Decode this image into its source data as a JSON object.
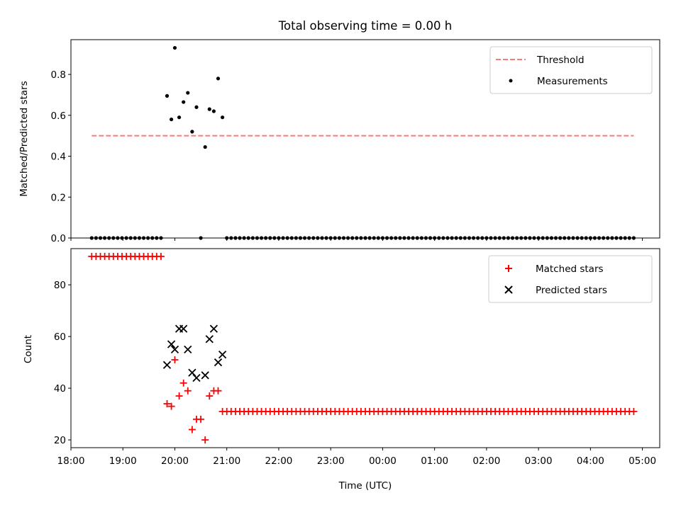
{
  "chart_data": [
    {
      "type": "scatter",
      "title": "Total observing time = 0.00 h",
      "xlabel": "",
      "ylabel": "Matched/Predicted stars",
      "ylim": [
        0,
        0.97
      ],
      "yticks": [
        "0.0",
        "0.2",
        "0.4",
        "0.6",
        "0.8"
      ],
      "xlim": [
        "18:00",
        "05:20"
      ],
      "xticks": [
        "18:00",
        "19:00",
        "20:00",
        "21:00",
        "22:00",
        "23:00",
        "00:00",
        "01:00",
        "02:00",
        "03:00",
        "04:00",
        "05:00"
      ],
      "legend_position": "top-right",
      "threshold": {
        "name": "Threshold",
        "value": 0.5,
        "x_start": "18:24",
        "x_end": "04:50",
        "color": "#ff7777"
      },
      "series": [
        {
          "name": "Measurements",
          "color": "#000000",
          "marker": "dot",
          "points": [
            [
              "19:51",
              0.695
            ],
            [
              "19:56",
              0.58
            ],
            [
              "20:00",
              0.93
            ],
            [
              "20:05",
              0.59
            ],
            [
              "20:10",
              0.665
            ],
            [
              "20:15",
              0.71
            ],
            [
              "20:20",
              0.52
            ],
            [
              "20:25",
              0.64
            ],
            [
              "20:30",
              0.0
            ],
            [
              "20:35",
              0.445
            ],
            [
              "20:40",
              0.63
            ],
            [
              "20:45",
              0.62
            ],
            [
              "20:50",
              0.78
            ],
            [
              "20:55",
              0.59
            ]
          ],
          "zero_runs": [
            {
              "from": "18:24",
              "to": "19:46",
              "step_minutes": 5
            },
            {
              "from": "21:00",
              "to": "04:50",
              "step_minutes": 5
            }
          ]
        }
      ]
    },
    {
      "type": "scatter",
      "title": "",
      "xlabel": "Time (UTC)",
      "ylabel": "Count",
      "ylim": [
        17,
        94
      ],
      "yticks": [
        "20",
        "40",
        "60",
        "80"
      ],
      "xlim": [
        "18:00",
        "05:20"
      ],
      "xticks": [
        "18:00",
        "19:00",
        "20:00",
        "21:00",
        "22:00",
        "23:00",
        "00:00",
        "01:00",
        "02:00",
        "03:00",
        "04:00",
        "05:00"
      ],
      "legend_position": "top-right",
      "series": [
        {
          "name": "Matched stars",
          "color": "#ff0000",
          "marker": "plus",
          "points": [
            [
              "19:51",
              34
            ],
            [
              "19:56",
              33
            ],
            [
              "20:00",
              51
            ],
            [
              "20:05",
              37
            ],
            [
              "20:10",
              42
            ],
            [
              "20:15",
              39
            ],
            [
              "20:20",
              24
            ],
            [
              "20:25",
              28
            ],
            [
              "20:30",
              28
            ],
            [
              "20:35",
              20
            ],
            [
              "20:40",
              37
            ],
            [
              "20:45",
              39
            ],
            [
              "20:50",
              39
            ]
          ],
          "runs": [
            {
              "from": "18:24",
              "to": "19:46",
              "step_minutes": 5,
              "value": 91
            },
            {
              "from": "20:55",
              "to": "04:50",
              "step_minutes": 5,
              "value": 31
            }
          ]
        },
        {
          "name": "Predicted stars",
          "color": "#000000",
          "marker": "x",
          "points": [
            [
              "19:51",
              49
            ],
            [
              "19:56",
              57
            ],
            [
              "20:00",
              55
            ],
            [
              "20:05",
              63
            ],
            [
              "20:10",
              63
            ],
            [
              "20:15",
              55
            ],
            [
              "20:20",
              46
            ],
            [
              "20:25",
              44
            ],
            [
              "20:35",
              45
            ],
            [
              "20:40",
              59
            ],
            [
              "20:45",
              63
            ],
            [
              "20:50",
              50
            ],
            [
              "20:55",
              53
            ]
          ]
        }
      ]
    }
  ]
}
